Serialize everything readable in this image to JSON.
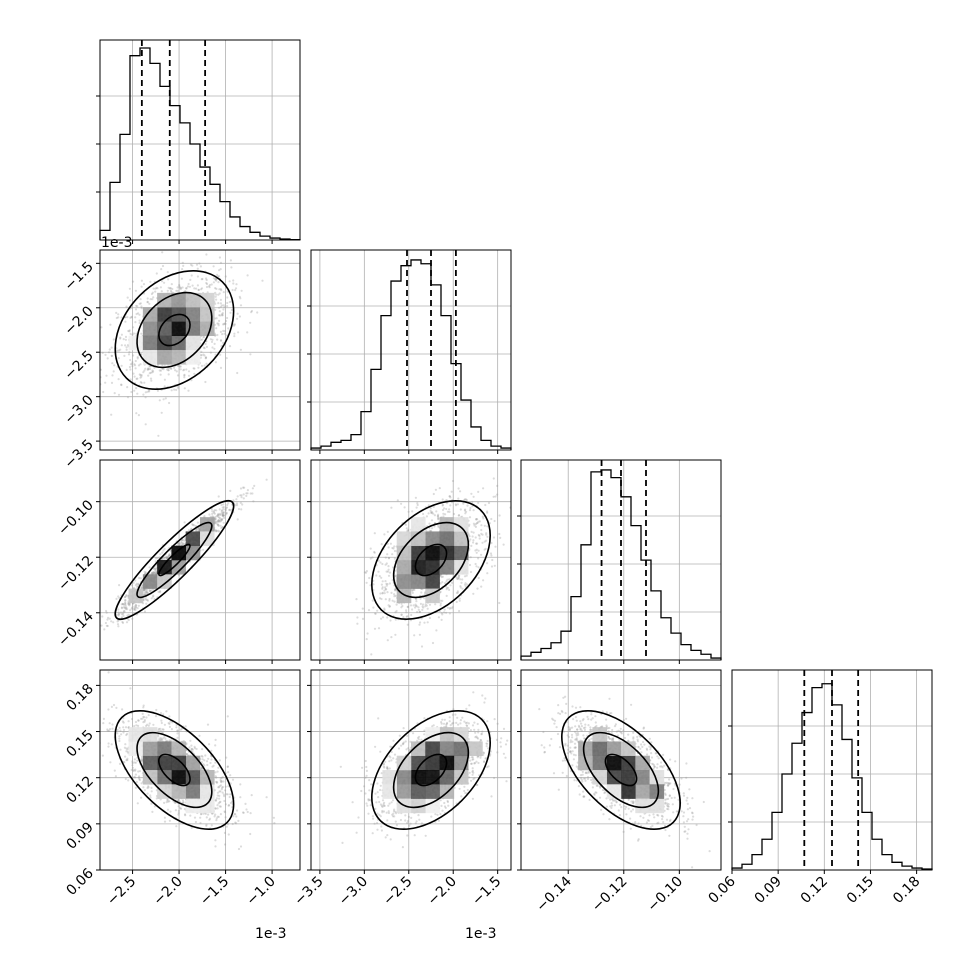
{
  "chart_data": {
    "type": "corner",
    "n_params": 4,
    "params": [
      {
        "range": [
          -2.85,
          -0.7
        ],
        "scale_label": "1e-3",
        "ticks": [
          -2.5,
          -2.0,
          -1.5,
          -1.0
        ],
        "tick_labels": [
          "−2.5",
          "−2.0",
          "−1.5",
          "−1.0"
        ],
        "quantiles": [
          -2.4,
          -2.1,
          -1.72
        ],
        "mean": -2.05,
        "sd": 0.3,
        "hist": [
          0.05,
          0.3,
          0.55,
          0.96,
          1.0,
          0.92,
          0.8,
          0.7,
          0.61,
          0.5,
          0.38,
          0.29,
          0.2,
          0.12,
          0.07,
          0.04,
          0.02,
          0.01,
          0.005,
          0.002
        ]
      },
      {
        "range": [
          -3.6,
          -1.35
        ],
        "scale_label": "1e-3",
        "ticks": [
          -3.5,
          -3.0,
          -2.5,
          -2.0,
          -1.5
        ],
        "tick_labels": [
          "−3.5",
          "−3.0",
          "−2.5",
          "−2.0",
          "−1.5"
        ],
        "quantiles": [
          -2.52,
          -2.25,
          -1.97
        ],
        "mean": -2.25,
        "sd": 0.3,
        "hist": [
          0.01,
          0.02,
          0.04,
          0.05,
          0.08,
          0.2,
          0.42,
          0.7,
          0.88,
          0.96,
          0.99,
          0.97,
          0.86,
          0.7,
          0.45,
          0.26,
          0.12,
          0.05,
          0.02,
          0.01
        ]
      },
      {
        "range": [
          -0.157,
          -0.085
        ],
        "scale_label": "",
        "ticks": [
          -0.14,
          -0.12,
          -0.1
        ],
        "tick_labels": [
          "−0.14",
          "−0.12",
          "−0.10"
        ],
        "quantiles": [
          -0.128,
          -0.121,
          -0.112
        ],
        "mean": -0.121,
        "sd": 0.01,
        "hist": [
          0.02,
          0.04,
          0.06,
          0.09,
          0.15,
          0.33,
          0.6,
          0.98,
          0.99,
          0.95,
          0.85,
          0.7,
          0.52,
          0.36,
          0.22,
          0.14,
          0.08,
          0.05,
          0.03,
          0.01
        ]
      },
      {
        "range": [
          0.06,
          0.19
        ],
        "scale_label": "",
        "ticks": [
          0.06,
          0.09,
          0.12,
          0.15,
          0.18
        ],
        "tick_labels": [
          "0.06",
          "0.09",
          "0.12",
          "0.15",
          "0.18"
        ],
        "quantiles": [
          0.107,
          0.125,
          0.142
        ],
        "mean": 0.125,
        "sd": 0.016,
        "hist": [
          0.01,
          0.03,
          0.08,
          0.16,
          0.3,
          0.5,
          0.66,
          0.82,
          0.95,
          0.97,
          0.86,
          0.68,
          0.48,
          0.3,
          0.16,
          0.08,
          0.04,
          0.02,
          0.01,
          0.005
        ]
      }
    ],
    "correlations": [
      {
        "row": 1,
        "col": 0,
        "rho": 0.35
      },
      {
        "row": 2,
        "col": 0,
        "rho": 0.96
      },
      {
        "row": 2,
        "col": 1,
        "rho": 0.45
      },
      {
        "row": 3,
        "col": 0,
        "rho": -0.62
      },
      {
        "row": 3,
        "col": 1,
        "rho": 0.5
      },
      {
        "row": 3,
        "col": 2,
        "rho": -0.6
      }
    ],
    "grid": true,
    "legend": "none"
  }
}
